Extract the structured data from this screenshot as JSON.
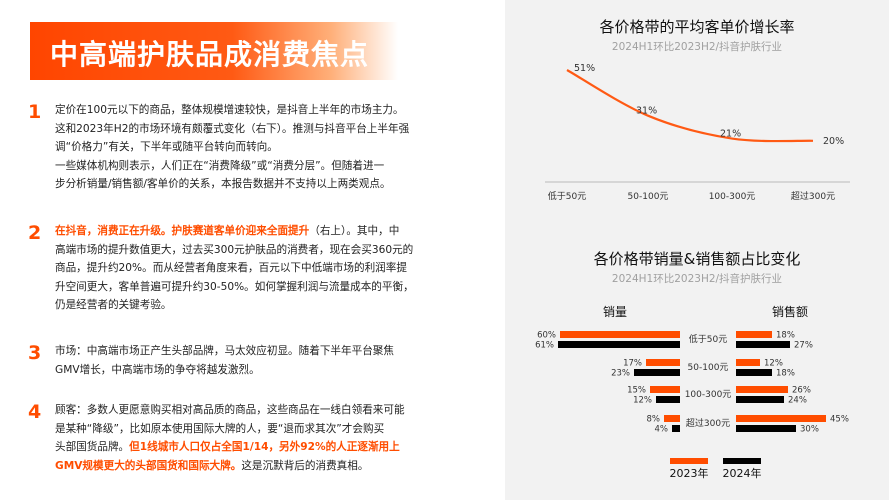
{
  "page_title": "中高端护肤品成消费焦点",
  "points": [
    {
      "num": "1",
      "lines": [
        [
          {
            "t": "定价在100元以下的商品，整体规模增速较快，是抖音上半年的市场主力。"
          }
        ],
        [
          {
            "t": "这和2023年H2的市场环境有颇覆式变化（右下）。推测与抖音平台上半年强"
          }
        ],
        [
          {
            "t": "调“价格力”有关，下半年或随平台转向而转向。"
          }
        ],
        [
          {
            "t": "一些媒体机构则表示，人们正在“消费降级”或“消费分层”。但随着进一"
          }
        ],
        [
          {
            "t": "步分析销量/销售额/客单价的关系，本报告数据并不支持以上两类观点。"
          }
        ]
      ]
    },
    {
      "num": "2",
      "lines": [
        [
          {
            "t": "在抖音，消费正在升级。护肤赛道客单价迎来全面提升",
            "h": "b"
          },
          {
            "t": "（右上）。其中，中"
          }
        ],
        [
          {
            "t": "高端市场的提升数值更大，过去买300元护肤品的消费者，现在会买360元的"
          }
        ],
        [
          {
            "t": "商品，提升约20%。而从经营者角度来看，百元以下中低端市场的利润率提"
          }
        ],
        [
          {
            "t": "升空间更大，客单普遍可提升约30-50%。如何掌握利润与流量成本的平衡，"
          }
        ],
        [
          {
            "t": "仍是经营者的关键考验。"
          }
        ]
      ]
    },
    {
      "num": "3",
      "lines": [
        [
          {
            "t": "市场：中高端市场正产生头部品牌，马太效应初显。随着下半年平台聚焦"
          }
        ],
        [
          {
            "t": "GMV增长，中高端市场的争夺将越发激烈。"
          }
        ]
      ]
    },
    {
      "num": "4",
      "lines": [
        [
          {
            "t": "顾客：多数人更愿意购买相对高品质的商品，这些商品在一线白领看来可能"
          }
        ],
        [
          {
            "t": "是某种“降级”，比如原本使用国际大牌的人，要“退而求其次”才会购买"
          }
        ],
        [
          {
            "t": "头部国货品牌。"
          },
          {
            "t": "但1线城市人口仅占全国1/14，另外92%的人正逐渐用上",
            "h": "o"
          }
        ],
        [
          {
            "t": "GMV规模更大的头部国货和国际大牌。",
            "h": "b"
          },
          {
            "t": "这是沉默背后的消费真相。"
          }
        ]
      ]
    }
  ],
  "colors": {
    "accent": "#ff4d00",
    "line": "#ff5a14",
    "y2023": "#ff4d00",
    "y2024": "#000000"
  },
  "chart_data": [
    {
      "type": "line",
      "title": "各价格带的平均客单价增长率",
      "subtitle": "2024H1环比2023H2/抖音护肤行业",
      "categories": [
        "低于50元",
        "50-100元",
        "100-300元",
        "超过300元"
      ],
      "series": [
        {
          "values": [
            51,
            31,
            21,
            20
          ]
        }
      ],
      "data_labels": [
        "51%",
        "31%",
        "21%",
        "20%"
      ],
      "smooth": true,
      "grid": false
    },
    {
      "type": "bar",
      "orientation": "horizontal",
      "title": "各价格带销量&销售额占比变化",
      "subtitle": "2024H1环比2023H2/抖音护肤行业",
      "categories": [
        "低于50元",
        "50-100元",
        "100-300元",
        "超过300元"
      ],
      "panels": [
        {
          "name": "销量",
          "direction": "left",
          "series": [
            {
              "name": "2023年",
              "values": [
                60,
                17,
                15,
                8
              ]
            },
            {
              "name": "2024年",
              "values": [
                61,
                23,
                12,
                4
              ]
            }
          ]
        },
        {
          "name": "销售额",
          "direction": "right",
          "series": [
            {
              "name": "2023年",
              "values": [
                18,
                12,
                26,
                45
              ]
            },
            {
              "name": "2024年",
              "values": [
                27,
                18,
                24,
                30
              ]
            }
          ]
        }
      ],
      "legend": [
        "2023年",
        "2024年"
      ],
      "legend_position": "bottom"
    }
  ]
}
